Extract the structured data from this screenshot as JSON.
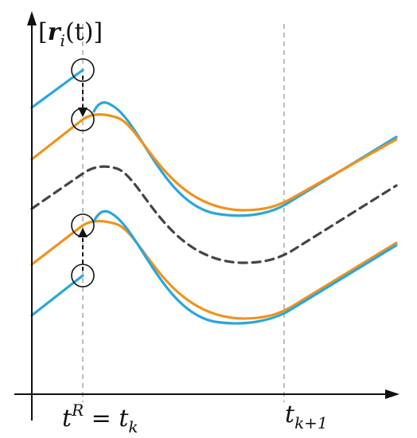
{
  "axis": {
    "y_label": {
      "open": "[",
      "symbol": "r",
      "sub": "i",
      "arg": "(t)",
      "close": "]"
    },
    "x_ticks": [
      {
        "id": "tk",
        "base": "t",
        "sup": "R",
        "rel": " = ",
        "base2": "t",
        "sub2": "k"
      },
      {
        "id": "tk1",
        "base": "t",
        "sub": "k+1"
      }
    ]
  },
  "colors": {
    "blue": "#2aa6dd",
    "orange": "#f0921b",
    "dashed": "#444444",
    "axis": "#111111",
    "guide": "#999999"
  },
  "curves": [
    {
      "name": "upper-blue-curve",
      "color": "blue"
    },
    {
      "name": "upper-orange-curve",
      "color": "orange"
    },
    {
      "name": "middle-dashed-curve",
      "color": "dashed"
    },
    {
      "name": "lower-orange-curve",
      "color": "orange"
    },
    {
      "name": "lower-blue-curve",
      "color": "blue"
    }
  ],
  "markers": [
    {
      "name": "upper-start-marker"
    },
    {
      "name": "upper-reset-marker"
    },
    {
      "name": "lower-reset-marker"
    },
    {
      "name": "lower-start-marker"
    }
  ]
}
